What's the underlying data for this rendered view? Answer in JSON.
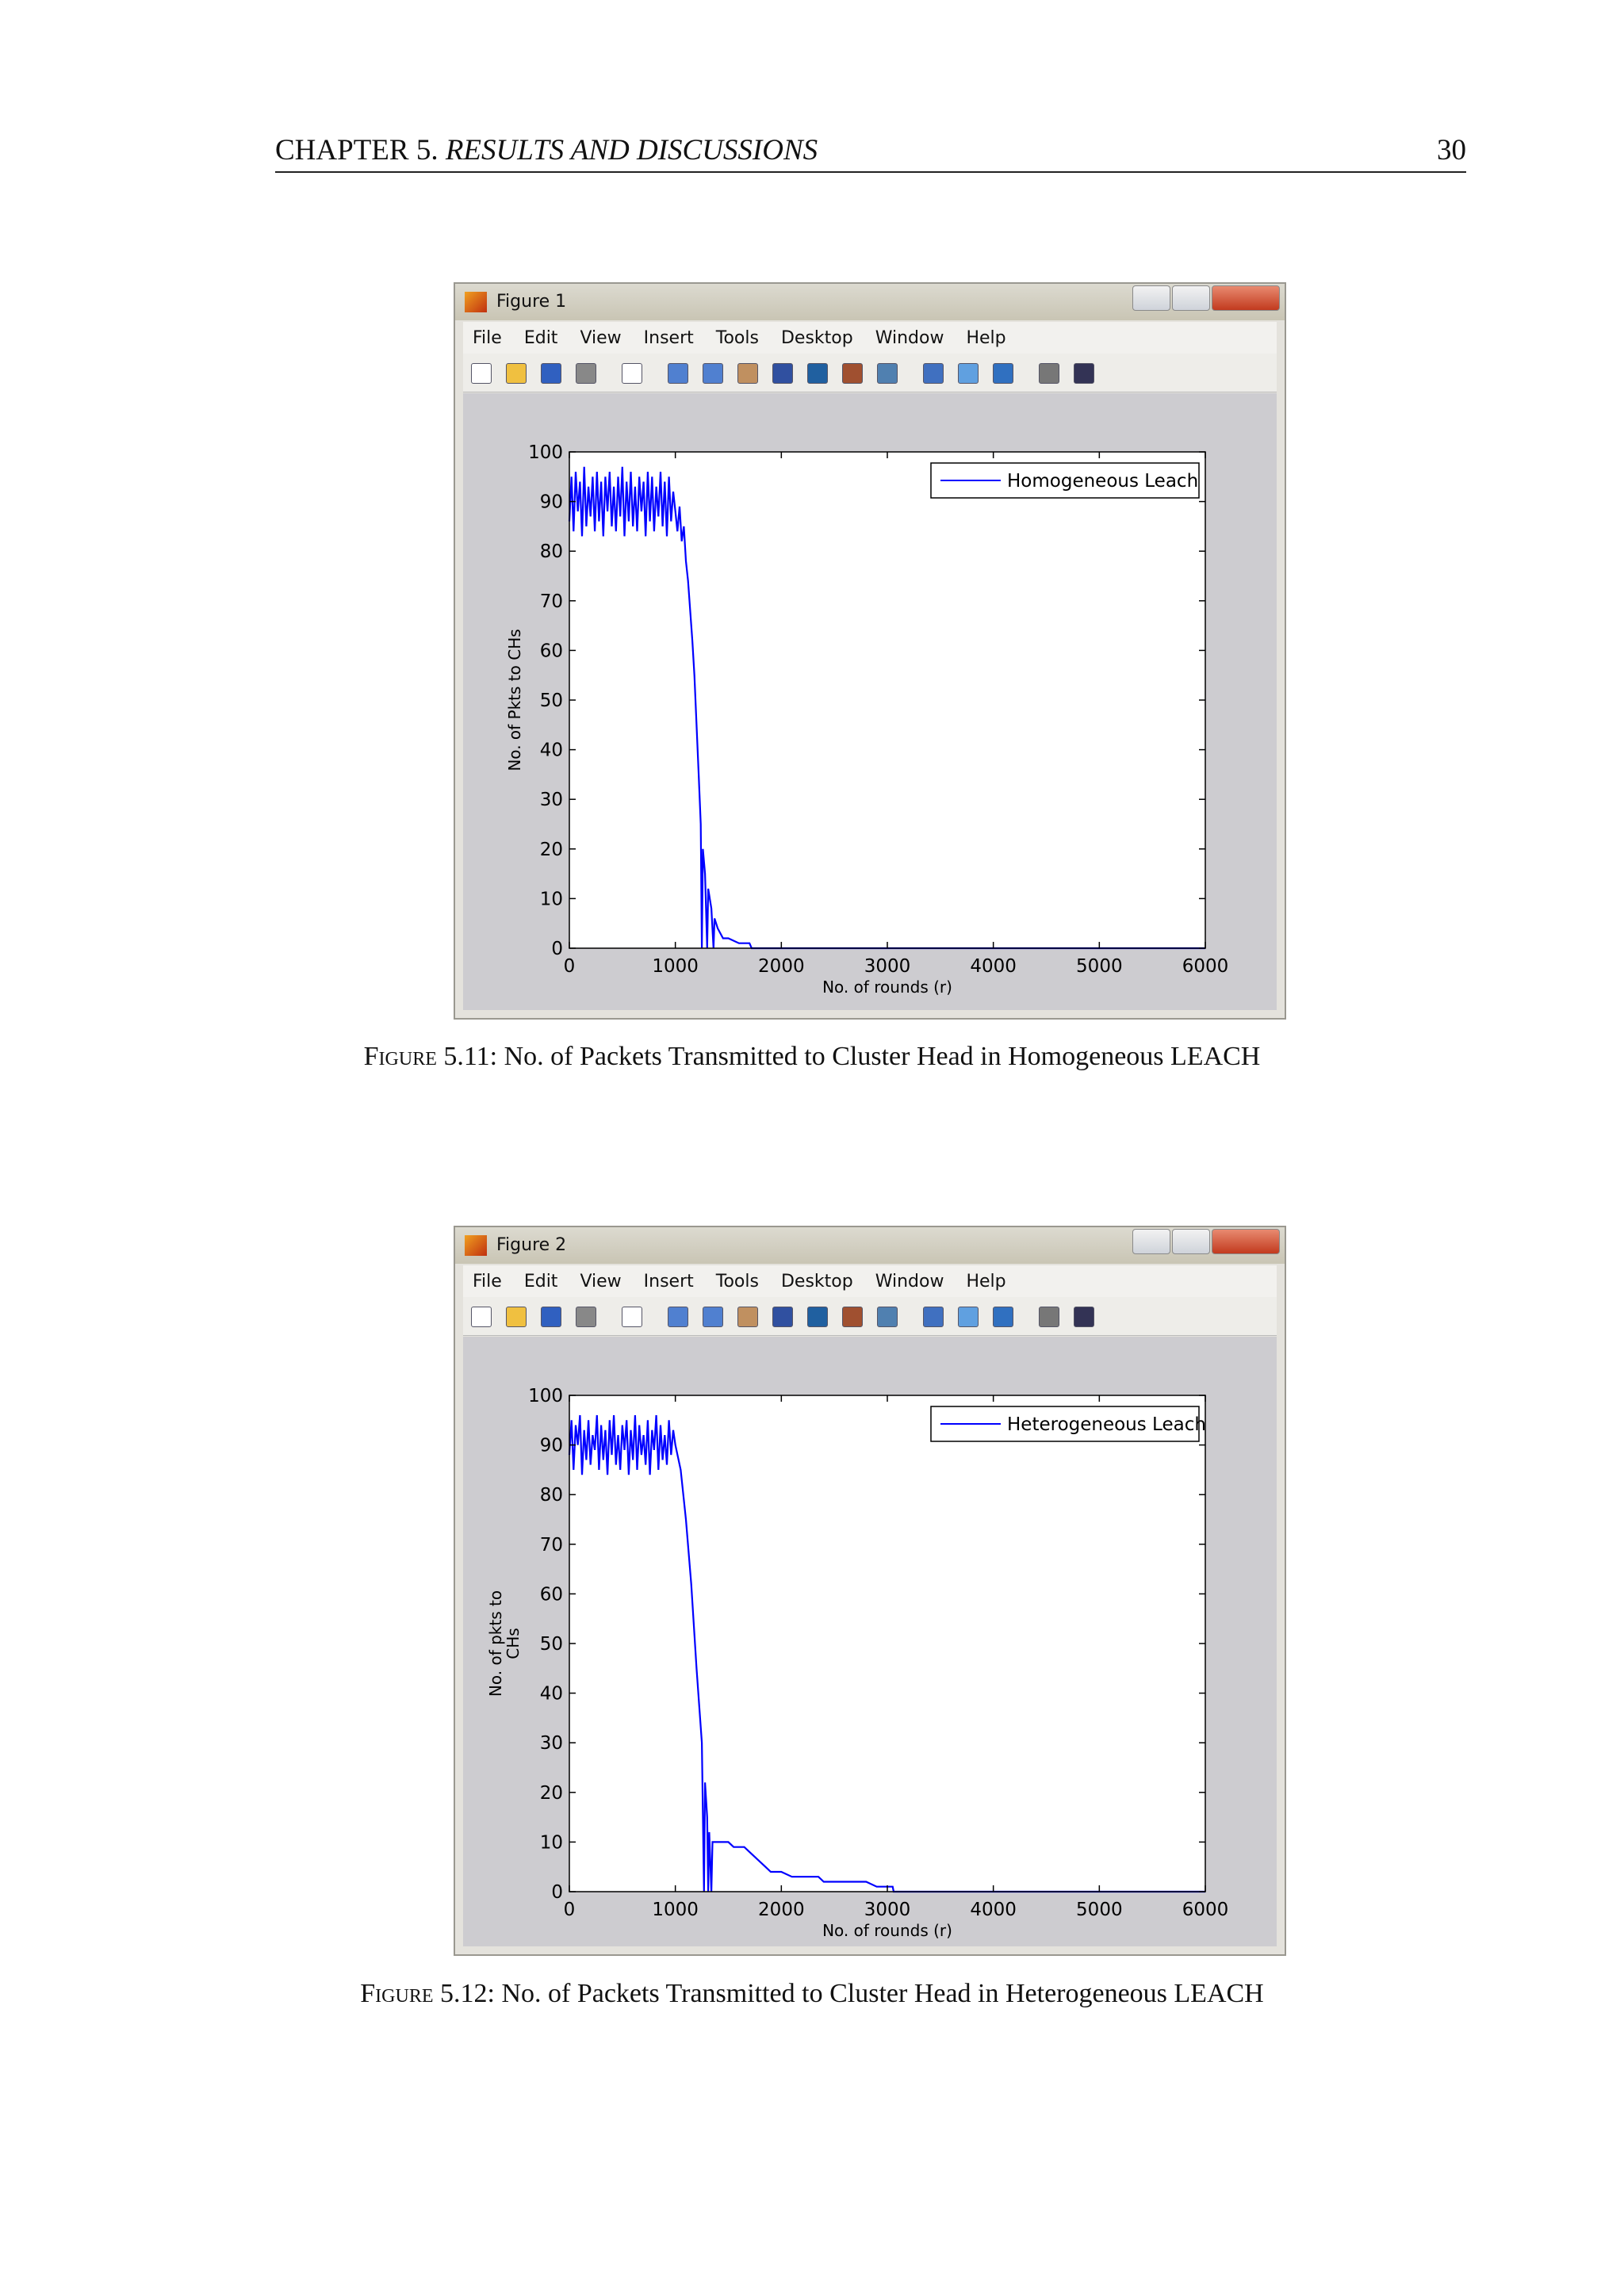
{
  "header": {
    "chapter": "CHAPTER 5.",
    "section": "RESULTS AND DISCUSSIONS",
    "page": "30"
  },
  "figures": [
    {
      "window_title": "Figure 1",
      "menu": [
        "File",
        "Edit",
        "View",
        "Insert",
        "Tools",
        "Desktop",
        "Window",
        "Help"
      ],
      "caption_label": "Figure 5.11:",
      "caption": "No. of Packets Transmitted to Cluster Head in Homogeneous LEACH"
    },
    {
      "window_title": "Figure 2",
      "menu": [
        "File",
        "Edit",
        "View",
        "Insert",
        "Tools",
        "Desktop",
        "Window",
        "Help"
      ],
      "caption_label": "Figure 5.12:",
      "caption": "No. of Packets Transmitted to Cluster Head in Heterogeneous LEACH"
    }
  ],
  "chart_data": [
    {
      "type": "line",
      "xlabel": "No. of rounds (r)",
      "ylabel": "No. of Pkts to CHs",
      "xlim": [
        0,
        6000
      ],
      "xticks": [
        0,
        1000,
        2000,
        3000,
        4000,
        5000,
        6000
      ],
      "ylim": [
        0,
        100
      ],
      "yticks": [
        0,
        10,
        20,
        30,
        40,
        50,
        60,
        70,
        80,
        90,
        100
      ],
      "grid": false,
      "legend": "upper right",
      "x": [
        0,
        20,
        40,
        60,
        80,
        100,
        120,
        140,
        160,
        180,
        200,
        220,
        240,
        260,
        280,
        300,
        320,
        340,
        360,
        380,
        400,
        420,
        440,
        460,
        480,
        500,
        520,
        540,
        560,
        580,
        600,
        620,
        640,
        660,
        680,
        700,
        720,
        740,
        760,
        780,
        800,
        820,
        840,
        860,
        880,
        900,
        920,
        940,
        960,
        980,
        1000,
        1020,
        1040,
        1060,
        1080,
        1100,
        1120,
        1140,
        1160,
        1180,
        1200,
        1220,
        1240,
        1250,
        1260,
        1280,
        1300,
        1310,
        1340,
        1360,
        1370,
        1400,
        1450,
        1500,
        1600,
        1700,
        1720,
        6000
      ],
      "series": [
        {
          "name": "Homogeneous Leach",
          "color": "#0000ff",
          "values": [
            86,
            95,
            84,
            96,
            88,
            94,
            83,
            97,
            85,
            93,
            87,
            95,
            84,
            96,
            86,
            94,
            83,
            95,
            88,
            96,
            85,
            93,
            84,
            95,
            87,
            97,
            83,
            94,
            86,
            96,
            85,
            93,
            84,
            95,
            88,
            94,
            83,
            96,
            86,
            95,
            84,
            93,
            87,
            96,
            85,
            94,
            83,
            95,
            86,
            92,
            88,
            84,
            89,
            82,
            85,
            78,
            74,
            68,
            62,
            55,
            45,
            35,
            25,
            0,
            20,
            15,
            0,
            12,
            8,
            0,
            6,
            4,
            2,
            2,
            1,
            1,
            0,
            0
          ]
        }
      ]
    },
    {
      "type": "line",
      "xlabel": "No. of rounds (r)",
      "ylabel": [
        "No. of pkts to",
        "CHs"
      ],
      "xlim": [
        0,
        6000
      ],
      "xticks": [
        0,
        1000,
        2000,
        3000,
        4000,
        5000,
        6000
      ],
      "ylim": [
        0,
        100
      ],
      "yticks": [
        0,
        10,
        20,
        30,
        40,
        50,
        60,
        70,
        80,
        90,
        100
      ],
      "grid": false,
      "legend": "upper right",
      "x": [
        0,
        20,
        40,
        60,
        80,
        100,
        120,
        140,
        160,
        180,
        200,
        220,
        240,
        260,
        280,
        300,
        320,
        340,
        360,
        380,
        400,
        420,
        440,
        460,
        480,
        500,
        520,
        540,
        560,
        580,
        600,
        620,
        640,
        660,
        680,
        700,
        720,
        740,
        760,
        780,
        800,
        820,
        840,
        860,
        880,
        900,
        920,
        940,
        960,
        980,
        1000,
        1050,
        1100,
        1150,
        1200,
        1250,
        1270,
        1280,
        1300,
        1310,
        1320,
        1340,
        1350,
        1400,
        1500,
        1550,
        1650,
        1700,
        1750,
        1800,
        1850,
        1900,
        2000,
        2100,
        2350,
        2400,
        2800,
        2900,
        3000,
        3050,
        3060,
        6000
      ],
      "series": [
        {
          "name": "Heterogeneous Leach",
          "color": "#0000ff",
          "values": [
            88,
            95,
            85,
            94,
            90,
            96,
            84,
            93,
            87,
            95,
            86,
            92,
            89,
            96,
            85,
            94,
            87,
            93,
            84,
            95,
            88,
            96,
            86,
            92,
            85,
            94,
            89,
            95,
            84,
            93,
            87,
            96,
            85,
            94,
            88,
            92,
            86,
            95,
            84,
            93,
            89,
            96,
            85,
            94,
            87,
            92,
            86,
            95,
            88,
            93,
            90,
            85,
            75,
            62,
            45,
            30,
            0,
            22,
            15,
            0,
            12,
            0,
            10,
            10,
            10,
            9,
            9,
            8,
            7,
            6,
            5,
            4,
            4,
            3,
            3,
            2,
            2,
            1,
            1,
            1,
            0,
            0
          ]
        }
      ]
    }
  ]
}
